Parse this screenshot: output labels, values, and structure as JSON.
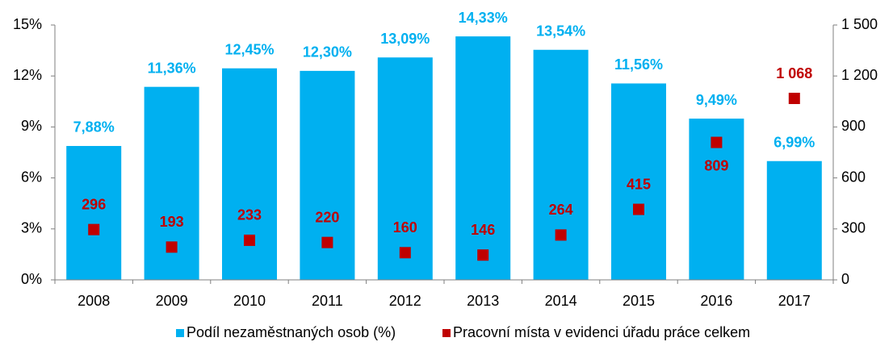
{
  "chart_data": {
    "type": "bar",
    "categories": [
      "2008",
      "2009",
      "2010",
      "2011",
      "2012",
      "2013",
      "2014",
      "2015",
      "2016",
      "2017"
    ],
    "series": [
      {
        "name": "Podíl nezaměstnaných osob (%)",
        "type": "bar",
        "color": "#00b0f0",
        "values": [
          7.88,
          11.36,
          12.45,
          12.3,
          13.09,
          14.33,
          13.54,
          11.56,
          9.49,
          6.99
        ],
        "value_labels": [
          "7,88%",
          "11,36%",
          "12,45%",
          "12,30%",
          "13,09%",
          "14,33%",
          "13,54%",
          "11,56%",
          "9,49%",
          "6,99%"
        ]
      },
      {
        "name": "Pracovní místa v evidenci úřadu práce celkem",
        "type": "scatter",
        "axis": "y2",
        "color": "#c00000",
        "values": [
          296,
          193,
          233,
          220,
          160,
          146,
          264,
          415,
          809,
          1068
        ],
        "value_labels": [
          "296",
          "193",
          "233",
          "220",
          "160",
          "146",
          "264",
          "415",
          "809",
          "1 068"
        ]
      }
    ],
    "ylim": [
      0,
      15
    ],
    "yticks": [
      {
        "value": 0,
        "label": "0%"
      },
      {
        "value": 3,
        "label": "3%"
      },
      {
        "value": 6,
        "label": "6%"
      },
      {
        "value": 9,
        "label": "9%"
      },
      {
        "value": 12,
        "label": "12%"
      },
      {
        "value": 15,
        "label": "15%"
      }
    ],
    "y2lim": [
      0,
      1500
    ],
    "y2ticks": [
      0,
      300,
      600,
      900,
      {
        "value": 1200,
        "label": "1 200"
      },
      {
        "value": 1500,
        "label": "1 500"
      }
    ],
    "legend": "bottom"
  }
}
